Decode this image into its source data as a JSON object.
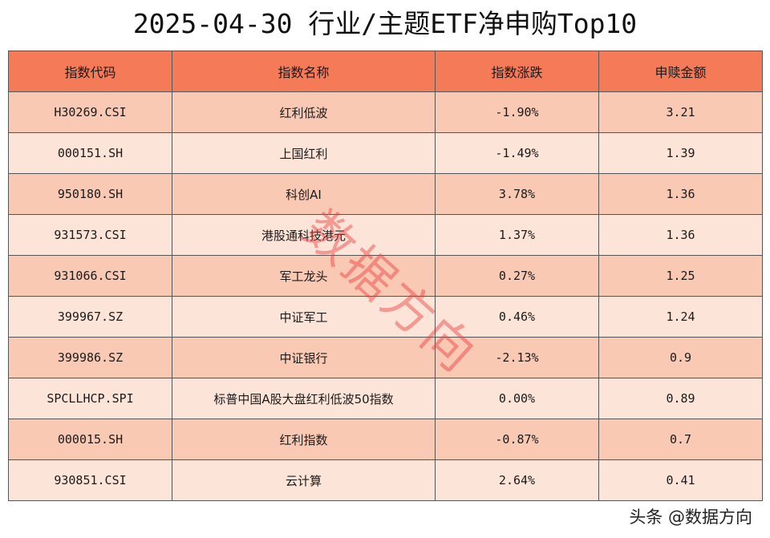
{
  "title": "2025-04-30 行业/主题ETF净申购Top10",
  "columns": [
    "指数代码",
    "指数名称",
    "指数涨跌",
    "申赎金额"
  ],
  "rows": [
    {
      "code": "H30269.CSI",
      "name": "红利低波",
      "change": "-1.90%",
      "amount": "3.21"
    },
    {
      "code": "000151.SH",
      "name": "上国红利",
      "change": "-1.49%",
      "amount": "1.39"
    },
    {
      "code": "950180.SH",
      "name": "科创AI",
      "change": "3.78%",
      "amount": "1.36"
    },
    {
      "code": "931573.CSI",
      "name": "港股通科技港元",
      "change": "1.37%",
      "amount": "1.36"
    },
    {
      "code": "931066.CSI",
      "name": "军工龙头",
      "change": "0.27%",
      "amount": "1.25"
    },
    {
      "code": "399967.SZ",
      "name": "中证军工",
      "change": "0.46%",
      "amount": "1.24"
    },
    {
      "code": "399986.SZ",
      "name": "中证银行",
      "change": "-2.13%",
      "amount": "0.9"
    },
    {
      "code": "SPCLLHCP.SPI",
      "name": "标普中国A股大盘红利低波50指数",
      "change": "0.00%",
      "amount": "0.89"
    },
    {
      "code": "000015.SH",
      "name": "红利指数",
      "change": "-0.87%",
      "amount": "0.7"
    },
    {
      "code": "930851.CSI",
      "name": "云计算",
      "change": "2.64%",
      "amount": "0.41"
    }
  ],
  "watermark": "数据方向",
  "footer": "头条 @数据方向",
  "colors": {
    "header_bg": "#f57a58",
    "row_odd": "#fac9b4",
    "row_even": "#fde4d8",
    "watermark": "#eb3c3c"
  }
}
